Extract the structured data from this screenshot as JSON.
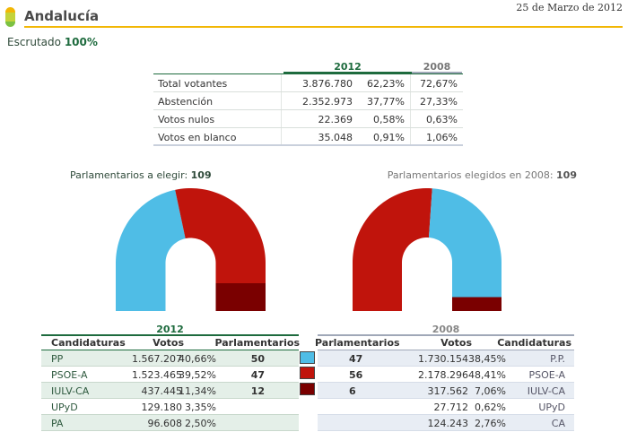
{
  "header": {
    "date": "25 de Marzo de 2012",
    "region": "Andalucía",
    "escrutado_label": "Escrutado",
    "escrutado_value": "100%"
  },
  "summary": {
    "year_current": "2012",
    "year_previous": "2008",
    "rows": [
      {
        "label": "Total votantes",
        "votes": "3.876.780",
        "pct": "62,23%",
        "pct_prev": "72,67%"
      },
      {
        "label": "Abstención",
        "votes": "2.352.973",
        "pct": "37,77%",
        "pct_prev": "27,33%"
      },
      {
        "label": "Votos nulos",
        "votes": "22.369",
        "pct": "0,58%",
        "pct_prev": "0,63%"
      },
      {
        "label": "Votos en blanco",
        "votes": "35.048",
        "pct": "0,91%",
        "pct_prev": "1,06%"
      }
    ]
  },
  "seats": {
    "current_label": "Parlamentarios a elegir:",
    "current_value": "109",
    "previous_label": "Parlamentarios elegidos en 2008:",
    "previous_value": "109"
  },
  "colors": {
    "PP": "#4fbde6",
    "PSOE": "#c0140c",
    "IULV": "#7a0000",
    "accent": "#1e6b3e",
    "header_line": "#f2b705"
  },
  "hemicycle_2012": [
    {
      "party": "PP",
      "seats": 50,
      "color": "#4fbde6"
    },
    {
      "party": "PSOE-A",
      "seats": 47,
      "color": "#c0140c"
    },
    {
      "party": "IULV-CA",
      "seats": 12,
      "color": "#7a0000"
    }
  ],
  "hemicycle_2008": [
    {
      "party": "PSOE-A",
      "seats": 56,
      "color": "#c0140c"
    },
    {
      "party": "P.P.",
      "seats": 47,
      "color": "#4fbde6"
    },
    {
      "party": "IULV-CA",
      "seats": 6,
      "color": "#7a0000"
    }
  ],
  "results_2012": {
    "year": "2012",
    "headers": {
      "party": "Candidaturas",
      "votes": "Votos",
      "seats": "Parlamentarios"
    },
    "rows": [
      {
        "party": "PP",
        "votes": "1.567.207",
        "pct": "40,66%",
        "seats": "50",
        "swatch": "#4fbde6"
      },
      {
        "party": "PSOE-A",
        "votes": "1.523.465",
        "pct": "39,52%",
        "seats": "47",
        "swatch": "#c0140c"
      },
      {
        "party": "IULV-CA",
        "votes": "437.445",
        "pct": "11,34%",
        "seats": "12",
        "swatch": "#7a0000"
      },
      {
        "party": "UPyD",
        "votes": "129.180",
        "pct": "3,35%",
        "seats": "",
        "swatch": ""
      },
      {
        "party": "PA",
        "votes": "96.608",
        "pct": "2,50%",
        "seats": "",
        "swatch": ""
      }
    ]
  },
  "results_2008": {
    "year": "2008",
    "headers": {
      "seats": "Parlamentarios",
      "votes": "Votos",
      "party": "Candidaturas"
    },
    "rows": [
      {
        "seats": "47",
        "votes": "1.730.154",
        "pct": "38,45%",
        "party": "P.P."
      },
      {
        "seats": "56",
        "votes": "2.178.296",
        "pct": "48,41%",
        "party": "PSOE-A"
      },
      {
        "seats": "6",
        "votes": "317.562",
        "pct": "7,06%",
        "party": "IULV-CA"
      },
      {
        "seats": "",
        "votes": "27.712",
        "pct": "0,62%",
        "party": "UPyD"
      },
      {
        "seats": "",
        "votes": "124.243",
        "pct": "2,76%",
        "party": "CA"
      }
    ]
  }
}
